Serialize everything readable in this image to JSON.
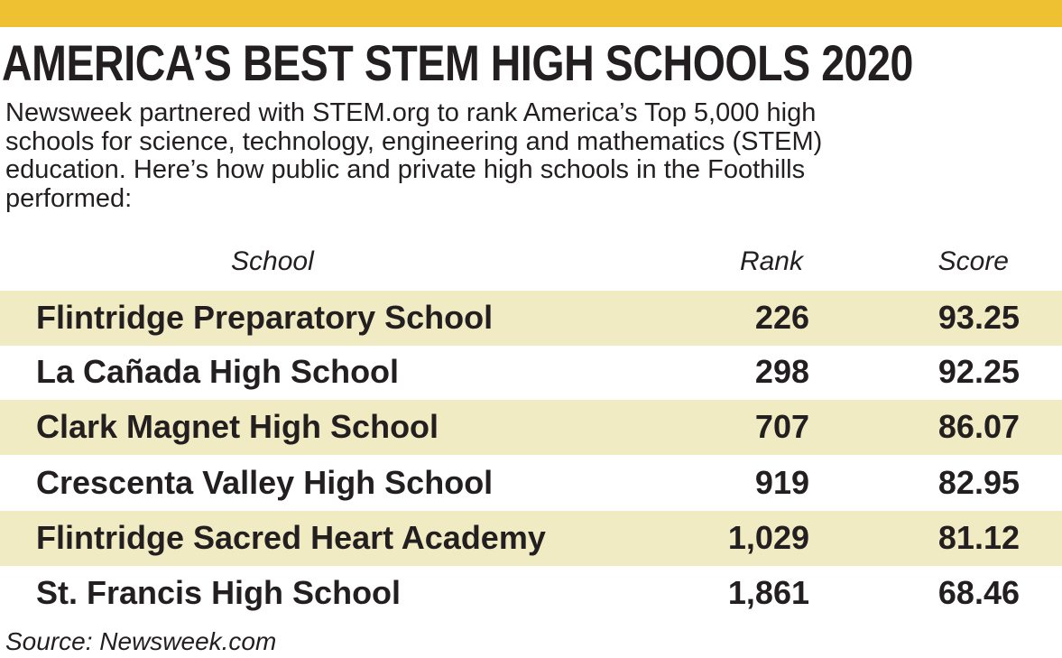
{
  "colors": {
    "accent_bar": "#eec132",
    "row_highlight": "#f1ebc4",
    "text": "#231f20"
  },
  "title": "AMERICA’S BEST STEM HIGH SCHOOLS 2020",
  "subtitle_lines": [
    "Newsweek partnered with STEM.org to rank America’s Top 5,000 high",
    "schools for science, technology, engineering and mathematics (STEM)",
    "education. Here’s how public and private high schools in the Foothills",
    "performed:"
  ],
  "chart_data": {
    "type": "table",
    "columns": [
      "School",
      "Rank",
      "Score"
    ],
    "rows": [
      {
        "school": "Flintridge Preparatory School",
        "rank": "226",
        "score": "93.25"
      },
      {
        "school": "La Cañada High School",
        "rank": "298",
        "score": "92.25"
      },
      {
        "school": "Clark Magnet High School",
        "rank": "707",
        "score": "86.07"
      },
      {
        "school": "Crescenta Valley High School",
        "rank": "919",
        "score": "82.95"
      },
      {
        "school": "Flintridge Sacred Heart Academy",
        "rank": "1,029",
        "score": "81.12"
      },
      {
        "school": "St. Francis High School",
        "rank": "1,861",
        "score": "68.46"
      }
    ]
  },
  "source": "Source: Newsweek.com"
}
